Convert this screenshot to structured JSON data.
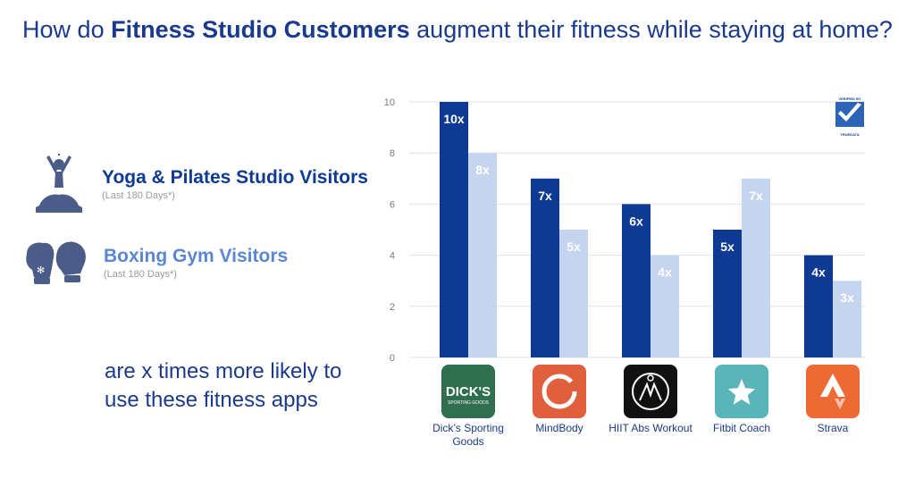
{
  "title": {
    "prefix": "How do ",
    "bold": "Fitness Studio Customers",
    "suffix": " augment their fitness while staying at home?"
  },
  "legend": [
    {
      "name": "Yoga & Pilates Studio Visitors",
      "sub": "(Last 180 Days*)",
      "color": "#0e3a94",
      "icon": "yoga-pose-icon"
    },
    {
      "name": "Boxing Gym Visitors",
      "sub": "(Last 180 Days*)",
      "color": "#5b86d0",
      "icon": "boxing-gloves-icon"
    }
  ],
  "tagline": "are x times more likely to use these fitness apps",
  "badge": {
    "top": "VERIFIED BY",
    "bottom": "TRUEDATA",
    "icon": "checkmark-icon"
  },
  "chart_data": {
    "type": "bar",
    "categories": [
      "Dick’s Sporting Goods",
      "MindBody",
      "HIIT Abs Workout",
      "Fitbit Coach",
      "Strava"
    ],
    "series": [
      {
        "name": "Yoga & Pilates Studio Visitors",
        "values": [
          10,
          7,
          6,
          5,
          4
        ],
        "labels": [
          "10x",
          "7x",
          "6x",
          "5x",
          "4x"
        ],
        "color": "#0e3a94"
      },
      {
        "name": "Boxing Gym Visitors",
        "values": [
          8,
          5,
          4,
          7,
          3
        ],
        "labels": [
          "8x",
          "5x",
          "4x",
          "7x",
          "3x"
        ],
        "color": "#c5d5f0"
      }
    ],
    "yticks": [
      "0",
      "2",
      "4",
      "6",
      "8",
      "10"
    ],
    "ylim": [
      0,
      10
    ],
    "grid": true,
    "app_icons": [
      {
        "name": "dicks-sporting-goods-icon",
        "bg": "#2f6e4e",
        "text": "DICK'S",
        "subtext": "SPORTING GOODS"
      },
      {
        "name": "mindbody-icon",
        "bg": "#e0603e"
      },
      {
        "name": "hiit-abs-workout-icon",
        "bg": "#111111"
      },
      {
        "name": "fitbit-coach-icon",
        "bg": "#5ab5b8"
      },
      {
        "name": "strava-icon",
        "bg": "#ee6a35"
      }
    ]
  }
}
